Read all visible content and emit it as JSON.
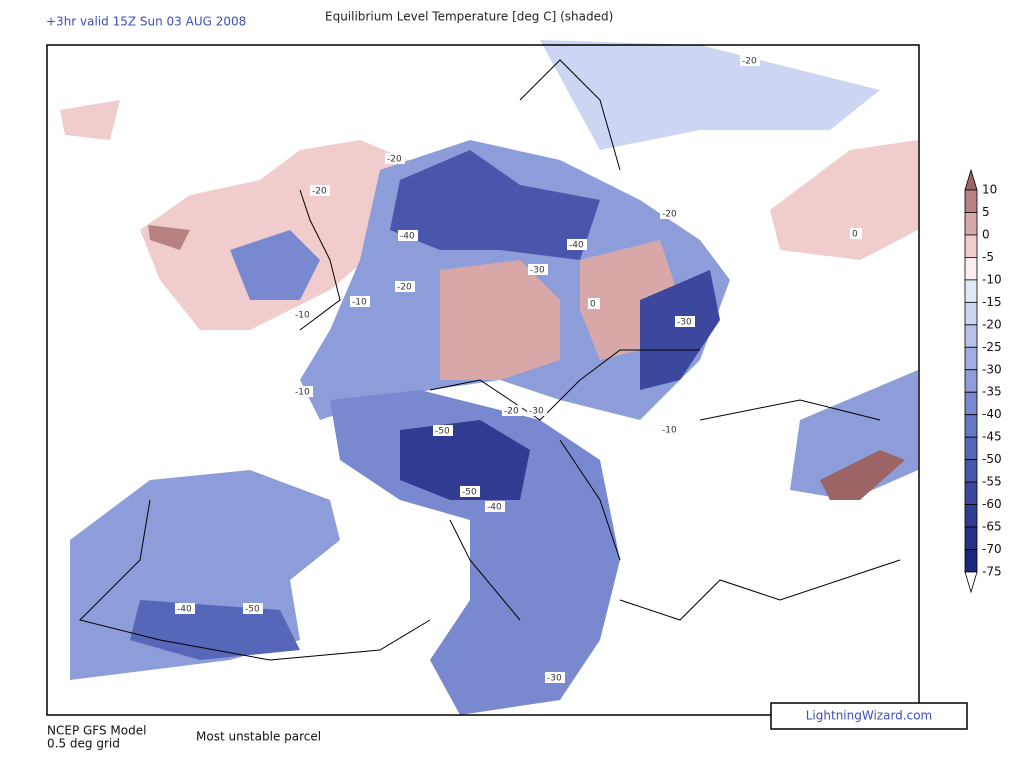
{
  "header": {
    "valid_time": "+3hr valid 15Z Sun 03 AUG 2008",
    "title": "Equilibrium Level Temperature [deg C] (shaded)"
  },
  "colorbar": {
    "levels": [
      10,
      5,
      0,
      -5,
      -10,
      -15,
      -20,
      -25,
      -30,
      -35,
      -40,
      -45,
      -50,
      -55,
      -60,
      -65,
      -70,
      -75
    ],
    "colors": [
      "#9c6464",
      "#b98282",
      "#d8a8a8",
      "#f0cccc",
      "#fbeeee",
      "#e2e8f8",
      "#ccd5f1",
      "#b6c2ea",
      "#a0afe2",
      "#8c9dd9",
      "#7889cf",
      "#6677c4",
      "#5666b8",
      "#4856ab",
      "#3b489e",
      "#2f3c92",
      "#243186",
      "#1b277a",
      "#ffffff"
    ]
  },
  "map": {
    "contour_labels": [
      "-20",
      "-20",
      "-40",
      "-40",
      "-20",
      "-10",
      "-10",
      "-30",
      "-20",
      "0",
      "-30",
      "-20",
      "-30",
      "-10",
      "-50",
      "-40",
      "-50",
      "-40",
      "-30",
      "0",
      "-10",
      "-20",
      "-50"
    ]
  },
  "footer": {
    "model": "NCEP GFS Model",
    "grid": "0.5 deg grid",
    "parcel": "Most unstable parcel",
    "watermark": "LightningWizard.com"
  }
}
